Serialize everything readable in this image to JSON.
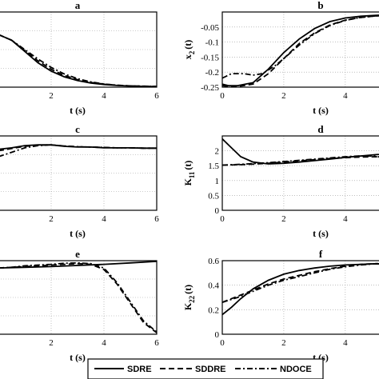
{
  "legend": {
    "entries": [
      {
        "label": "SDRE",
        "dash": ""
      },
      {
        "label": "SDDRE",
        "dash": "7,4"
      },
      {
        "label": "NDOCE",
        "dash": "7,3,2,3"
      }
    ]
  },
  "chart_data": [
    {
      "id": "a",
      "type": "line",
      "title": "a",
      "xlabel": "t (s)",
      "ylabel": "",
      "xlim": [
        0,
        6
      ],
      "ylim": [
        -0.25,
        0.15
      ],
      "xticks": [
        "2",
        "4",
        "6"
      ],
      "yticks": [],
      "grid": true,
      "series": [
        {
          "name": "SDRE",
          "x": [
            0,
            0.5,
            1,
            1.5,
            2,
            2.5,
            3,
            3.5,
            4,
            4.5,
            5,
            5.5,
            6
          ],
          "y": [
            0.03,
            0.0,
            -0.06,
            -0.12,
            -0.165,
            -0.195,
            -0.215,
            -0.228,
            -0.236,
            -0.241,
            -0.244,
            -0.246,
            -0.247
          ]
        },
        {
          "name": "SDDRE",
          "x": [
            0,
            0.5,
            1,
            1.5,
            2,
            2.5,
            3,
            3.5,
            4,
            4.5,
            5,
            5.5,
            6
          ],
          "y": [
            0.03,
            0.0,
            -0.055,
            -0.11,
            -0.155,
            -0.188,
            -0.21,
            -0.225,
            -0.234,
            -0.24,
            -0.243,
            -0.245,
            -0.246
          ]
        },
        {
          "name": "NDOCE",
          "x": [
            0,
            0.5,
            1,
            1.5,
            2,
            2.5,
            3,
            3.5,
            4,
            4.5,
            5,
            5.5,
            6
          ],
          "y": [
            0.03,
            0.0,
            -0.05,
            -0.1,
            -0.145,
            -0.18,
            -0.205,
            -0.222,
            -0.233,
            -0.24,
            -0.243,
            -0.245,
            -0.246
          ]
        }
      ]
    },
    {
      "id": "b",
      "type": "line",
      "title": "b",
      "xlabel": "t (s)",
      "ylabel": "x_2 (t)",
      "xlim": [
        0,
        6
      ],
      "ylim": [
        -0.25,
        0
      ],
      "xticks": [
        "0",
        "2",
        "4"
      ],
      "yticks": [
        "-0.25",
        "-0.2",
        "-0.15",
        "-0.1",
        "-0.05"
      ],
      "grid": true,
      "series": [
        {
          "name": "SDRE",
          "x": [
            0,
            0.2,
            0.5,
            1,
            1.5,
            2,
            2.5,
            3,
            3.5,
            4,
            4.5,
            5,
            6
          ],
          "y": [
            -0.24,
            -0.245,
            -0.245,
            -0.235,
            -0.19,
            -0.135,
            -0.09,
            -0.055,
            -0.032,
            -0.02,
            -0.014,
            -0.011,
            -0.009
          ]
        },
        {
          "name": "SDDRE",
          "x": [
            0,
            0.2,
            0.5,
            1,
            1.5,
            2,
            2.5,
            3,
            3.5,
            4,
            4.5,
            5,
            6
          ],
          "y": [
            -0.245,
            -0.248,
            -0.248,
            -0.24,
            -0.205,
            -0.155,
            -0.105,
            -0.07,
            -0.043,
            -0.027,
            -0.018,
            -0.013,
            -0.01
          ]
        },
        {
          "name": "NDOCE",
          "x": [
            0,
            0.3,
            0.7,
            1,
            1.3,
            1.7,
            2,
            2.5,
            3,
            3.5,
            4,
            4.5,
            5,
            6
          ],
          "y": [
            -0.22,
            -0.205,
            -0.205,
            -0.21,
            -0.205,
            -0.18,
            -0.155,
            -0.11,
            -0.072,
            -0.045,
            -0.028,
            -0.018,
            -0.013,
            -0.01
          ]
        }
      ]
    },
    {
      "id": "c",
      "type": "line",
      "title": "c",
      "xlabel": "t (s)",
      "ylabel": "",
      "xlim": [
        0,
        6
      ],
      "ylim": [
        0,
        1
      ],
      "xticks": [
        "2",
        "4",
        "6"
      ],
      "yticks": [],
      "grid": true,
      "series": [
        {
          "name": "SDRE",
          "x": [
            0,
            0.5,
            1,
            1.5,
            2,
            2.5,
            3,
            3.5,
            4,
            4.5,
            5,
            5.5,
            6
          ],
          "y": [
            0.82,
            0.84,
            0.87,
            0.88,
            0.88,
            0.86,
            0.85,
            0.85,
            0.84,
            0.84,
            0.84,
            0.835,
            0.835
          ]
        },
        {
          "name": "SDDRE",
          "x": [
            0,
            0.5,
            1,
            1.5,
            2,
            2.5,
            3,
            3.5,
            4,
            4.5,
            5,
            5.5,
            6
          ],
          "y": [
            0.8,
            0.83,
            0.86,
            0.875,
            0.88,
            0.865,
            0.855,
            0.85,
            0.845,
            0.84,
            0.84,
            0.835,
            0.835
          ]
        },
        {
          "name": "NDOCE",
          "x": [
            0,
            0.5,
            1,
            1.5,
            2,
            2.5,
            3,
            3.5,
            4,
            4.5,
            5,
            5.5,
            6
          ],
          "y": [
            0.72,
            0.78,
            0.84,
            0.87,
            0.88,
            0.865,
            0.855,
            0.85,
            0.845,
            0.84,
            0.84,
            0.835,
            0.835
          ]
        }
      ]
    },
    {
      "id": "d",
      "type": "line",
      "title": "d",
      "xlabel": "t (s)",
      "ylabel": "K_11 (t)",
      "xlim": [
        0,
        6
      ],
      "ylim": [
        0,
        2.5
      ],
      "xticks": [
        "0",
        "2",
        "4"
      ],
      "yticks": [
        "0",
        "0.5",
        "1",
        "1.5",
        "2"
      ],
      "grid": true,
      "series": [
        {
          "name": "SDRE",
          "x": [
            0,
            0.3,
            0.6,
            1,
            1.5,
            2,
            2.5,
            3,
            3.5,
            4,
            5,
            6
          ],
          "y": [
            2.4,
            2.1,
            1.8,
            1.62,
            1.56,
            1.58,
            1.62,
            1.67,
            1.72,
            1.78,
            1.87,
            1.95
          ]
        },
        {
          "name": "SDDRE",
          "x": [
            0,
            0.5,
            1,
            1.5,
            2,
            2.5,
            3,
            3.5,
            4,
            4.5,
            5,
            5.5,
            6
          ],
          "y": [
            1.52,
            1.53,
            1.55,
            1.58,
            1.62,
            1.66,
            1.7,
            1.74,
            1.77,
            1.79,
            1.8,
            1.78,
            1.7
          ]
        },
        {
          "name": "NDOCE",
          "x": [
            0,
            0.5,
            1,
            1.5,
            2,
            2.5,
            3,
            3.5,
            4,
            4.5,
            5,
            5.5,
            6
          ],
          "y": [
            1.52,
            1.54,
            1.57,
            1.6,
            1.64,
            1.68,
            1.72,
            1.76,
            1.8,
            1.83,
            1.82,
            1.7,
            1.45
          ]
        }
      ]
    },
    {
      "id": "e",
      "type": "line",
      "title": "e",
      "xlabel": "t (s)",
      "ylabel": "",
      "xlim": [
        0,
        6
      ],
      "ylim": [
        0,
        1
      ],
      "xticks": [
        "2",
        "4",
        "6"
      ],
      "yticks": [],
      "grid": true,
      "series": [
        {
          "name": "SDRE",
          "x": [
            0,
            1,
            2,
            3,
            4,
            5,
            6
          ],
          "y": [
            0.9,
            0.91,
            0.92,
            0.935,
            0.95,
            0.97,
            0.99
          ]
        },
        {
          "name": "SDDRE",
          "x": [
            0,
            0.5,
            1,
            2,
            2.5,
            3,
            3.5,
            4,
            4.5,
            5,
            5.5,
            6
          ],
          "y": [
            0.9,
            0.91,
            0.92,
            0.94,
            0.95,
            0.96,
            0.95,
            0.88,
            0.68,
            0.42,
            0.16,
            0.02
          ]
        },
        {
          "name": "NDOCE",
          "x": [
            0,
            0.5,
            1,
            2,
            2.5,
            3,
            3.5,
            4,
            4.5,
            5,
            5.5,
            6
          ],
          "y": [
            0.9,
            0.91,
            0.93,
            0.95,
            0.965,
            0.97,
            0.96,
            0.9,
            0.7,
            0.44,
            0.18,
            0.03
          ]
        }
      ]
    },
    {
      "id": "f",
      "type": "line",
      "title": "f",
      "xlabel": "t (s)",
      "ylabel": "K_22 (t)",
      "xlim": [
        0,
        6
      ],
      "ylim": [
        0,
        0.6
      ],
      "xticks": [
        "0",
        "2",
        "4"
      ],
      "yticks": [
        "0",
        "0.2",
        "0.4",
        "0.6"
      ],
      "grid": true,
      "series": [
        {
          "name": "SDRE",
          "x": [
            0,
            0.3,
            0.6,
            1,
            1.5,
            2,
            2.5,
            3,
            3.5,
            4,
            4.5,
            5,
            5.5,
            6
          ],
          "y": [
            0.16,
            0.22,
            0.29,
            0.37,
            0.44,
            0.49,
            0.52,
            0.54,
            0.555,
            0.565,
            0.57,
            0.575,
            0.565,
            0.54
          ]
        },
        {
          "name": "SDDRE",
          "x": [
            0,
            0.5,
            1,
            1.5,
            2,
            2.5,
            3,
            3.5,
            4,
            4.5,
            5,
            5.5,
            6
          ],
          "y": [
            0.26,
            0.31,
            0.36,
            0.41,
            0.45,
            0.48,
            0.51,
            0.535,
            0.555,
            0.57,
            0.575,
            0.57,
            0.54
          ]
        },
        {
          "name": "NDOCE",
          "x": [
            0,
            0.5,
            1,
            1.5,
            2,
            2.5,
            3,
            3.5,
            4,
            4.5,
            5,
            5.5,
            6
          ],
          "y": [
            0.26,
            0.3,
            0.35,
            0.4,
            0.44,
            0.47,
            0.5,
            0.53,
            0.55,
            0.565,
            0.575,
            0.58,
            0.57
          ]
        }
      ]
    }
  ]
}
